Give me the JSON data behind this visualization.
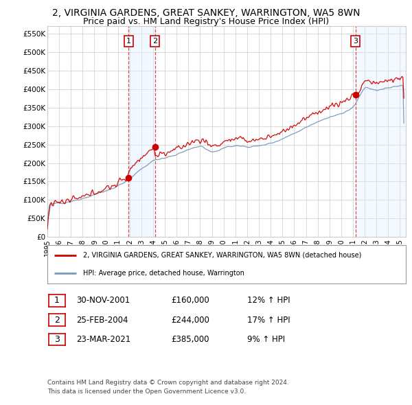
{
  "title": "2, VIRGINIA GARDENS, GREAT SANKEY, WARRINGTON, WA5 8WN",
  "subtitle": "Price paid vs. HM Land Registry's House Price Index (HPI)",
  "title_fontsize": 10,
  "subtitle_fontsize": 9,
  "ylabel_ticks": [
    "£0",
    "£50K",
    "£100K",
    "£150K",
    "£200K",
    "£250K",
    "£300K",
    "£350K",
    "£400K",
    "£450K",
    "£500K",
    "£550K"
  ],
  "ytick_vals": [
    0,
    50000,
    100000,
    150000,
    200000,
    250000,
    300000,
    350000,
    400000,
    450000,
    500000,
    550000
  ],
  "ylim": [
    0,
    570000
  ],
  "xlim_start": 1995.0,
  "xlim_end": 2025.5,
  "x_tick_years": [
    1995,
    1996,
    1997,
    1998,
    1999,
    2000,
    2001,
    2002,
    2003,
    2004,
    2005,
    2006,
    2007,
    2008,
    2009,
    2010,
    2011,
    2012,
    2013,
    2014,
    2015,
    2016,
    2017,
    2018,
    2019,
    2020,
    2021,
    2022,
    2023,
    2024,
    2025
  ],
  "sale1_date": 2001.92,
  "sale1_price": 160000,
  "sale1_label": "1",
  "sale2_date": 2004.15,
  "sale2_price": 244000,
  "sale2_label": "2",
  "sale3_date": 2021.22,
  "sale3_price": 385000,
  "sale3_label": "3",
  "red_line_color": "#cc0000",
  "blue_line_color": "#7799bb",
  "shade_color": "#ddeeff",
  "grid_color": "#cccccc",
  "background_color": "#ffffff",
  "legend_line1": "2, VIRGINIA GARDENS, GREAT SANKEY, WARRINGTON, WA5 8WN (detached house)",
  "legend_line2": "HPI: Average price, detached house, Warrington",
  "table_row1": [
    "1",
    "30-NOV-2001",
    "£160,000",
    "12% ↑ HPI"
  ],
  "table_row2": [
    "2",
    "25-FEB-2004",
    "£244,000",
    "17% ↑ HPI"
  ],
  "table_row3": [
    "3",
    "23-MAR-2021",
    "£385,000",
    "9% ↑ HPI"
  ],
  "footer1": "Contains HM Land Registry data © Crown copyright and database right 2024.",
  "footer2": "This data is licensed under the Open Government Licence v3.0."
}
